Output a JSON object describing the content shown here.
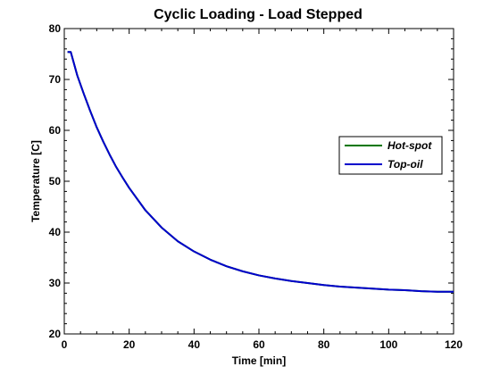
{
  "chart_data": {
    "type": "line",
    "title": "Cyclic Loading - Load Stepped",
    "xlabel": "Time [min]",
    "ylabel": "Temperature [C]",
    "xlim": [
      0,
      120
    ],
    "ylim": [
      20,
      80
    ],
    "xticks": [
      0,
      20,
      40,
      60,
      80,
      100,
      120
    ],
    "yticks": [
      20,
      30,
      40,
      50,
      60,
      70,
      80
    ],
    "grid": false,
    "legend": "right",
    "series": [
      {
        "name": "Hot-spot",
        "color": "#007700",
        "x": [
          1,
          2,
          4,
          6,
          8,
          10,
          12,
          14,
          16,
          18,
          20,
          25,
          30,
          35,
          40,
          45,
          50,
          55,
          60,
          65,
          70,
          75,
          80,
          85,
          90,
          95,
          100,
          105,
          110,
          115,
          120
        ],
        "y": [
          75.4,
          75.4,
          70.8,
          67.2,
          63.8,
          60.6,
          57.8,
          55.2,
          52.8,
          50.7,
          48.7,
          44.3,
          40.9,
          38.2,
          36.2,
          34.6,
          33.3,
          32.3,
          31.5,
          30.9,
          30.4,
          30.0,
          29.6,
          29.3,
          29.1,
          28.9,
          28.7,
          28.6,
          28.4,
          28.3,
          28.3
        ]
      },
      {
        "name": "Top-oil",
        "color": "#0000cc",
        "x": [
          1,
          2,
          4,
          6,
          8,
          10,
          12,
          14,
          16,
          18,
          20,
          25,
          30,
          35,
          40,
          45,
          50,
          55,
          60,
          65,
          70,
          75,
          80,
          85,
          90,
          95,
          100,
          105,
          110,
          115,
          120
        ],
        "y": [
          75.4,
          75.4,
          70.8,
          67.2,
          63.8,
          60.6,
          57.8,
          55.2,
          52.8,
          50.7,
          48.7,
          44.3,
          40.9,
          38.2,
          36.2,
          34.6,
          33.3,
          32.3,
          31.5,
          30.9,
          30.4,
          30.0,
          29.6,
          29.3,
          29.1,
          28.9,
          28.7,
          28.6,
          28.4,
          28.3,
          28.3
        ]
      }
    ]
  }
}
